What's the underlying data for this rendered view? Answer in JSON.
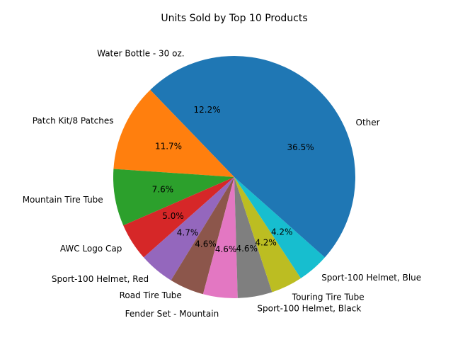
{
  "chart_data": {
    "type": "pie",
    "title": "Units Sold by Top 10 Products",
    "labels": [
      "Water Bottle - 30 oz.",
      "Patch Kit/8 Patches",
      "Mountain Tire Tube",
      "AWC Logo Cap",
      "Sport-100 Helmet, Red",
      "Road Tire Tube",
      "Fender Set - Mountain",
      "Sport-100 Helmet, Black",
      "Touring Tire Tube",
      "Sport-100 Helmet, Blue",
      "Other"
    ],
    "values": [
      12.2,
      11.7,
      7.6,
      5.0,
      4.7,
      4.6,
      4.6,
      4.6,
      4.2,
      4.2,
      36.5
    ],
    "percent_labels": [
      "12.2%",
      "11.7%",
      "7.6%",
      "5.0%",
      "4.7%",
      "4.6%",
      "4.6%",
      "4.6%",
      "4.2%",
      "4.2%",
      "36.5%"
    ],
    "colors": [
      "#1f77b4",
      "#ff7f0e",
      "#2ca02c",
      "#d62728",
      "#9467bd",
      "#8c564b",
      "#e377c2",
      "#7f7f7f",
      "#bcbd22",
      "#17becf",
      "#1f77b4"
    ],
    "start_angle_deg": 90,
    "direction": "counterclockwise"
  }
}
